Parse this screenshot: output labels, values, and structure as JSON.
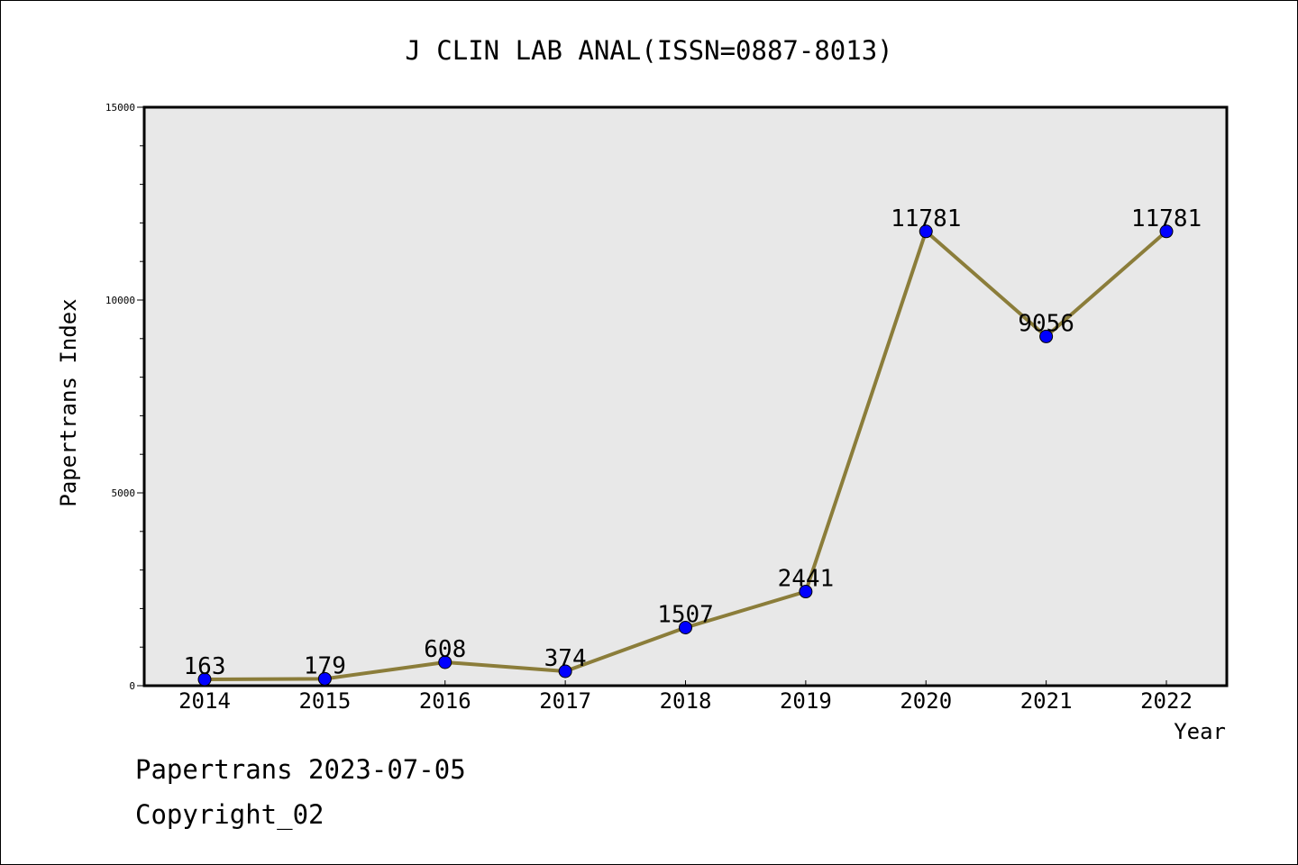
{
  "chart_data": {
    "type": "line",
    "title": "J CLIN LAB ANAL(ISSN=0887-8013)",
    "xlabel": "Year",
    "ylabel": "Papertrans Index",
    "categories": [
      "2014",
      "2015",
      "2016",
      "2017",
      "2018",
      "2019",
      "2020",
      "2021",
      "2022"
    ],
    "values": [
      163,
      179,
      608,
      374,
      1507,
      2441,
      11781,
      9056,
      11781
    ],
    "data_labels": [
      "163",
      "179",
      "608",
      "374",
      "1507",
      "2441",
      "11781",
      "9056",
      "11781"
    ],
    "ylim": [
      0,
      15000
    ],
    "y_ticks": [
      "0",
      "5000",
      "10000",
      "15000"
    ],
    "grid": false,
    "legend": "none",
    "colors": {
      "line": "#8b7d3a",
      "marker": "#0000ff",
      "plot_background": "#e8e8e8",
      "text": "#000000"
    }
  },
  "footer": {
    "line1": "Papertrans 2023-07-05",
    "line2": "Copyright_02"
  }
}
